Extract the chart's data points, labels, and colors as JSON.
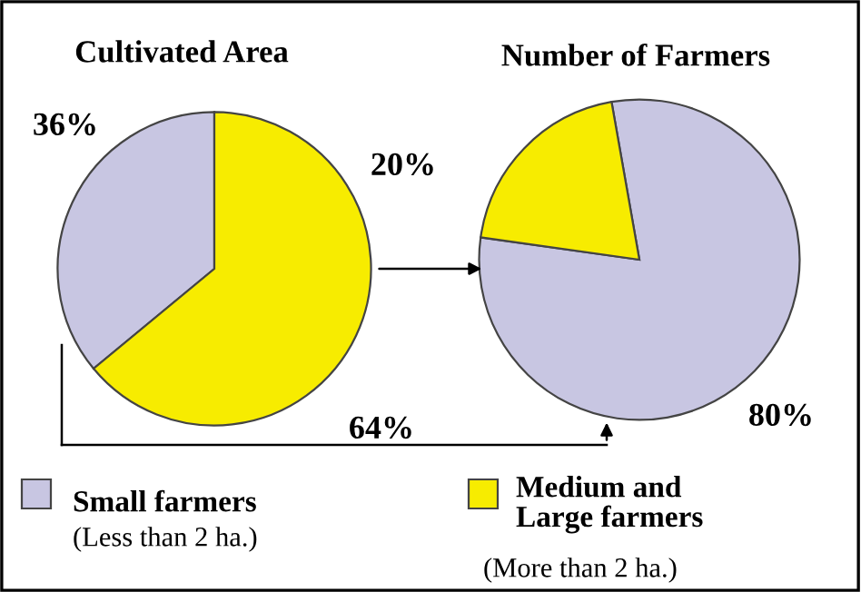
{
  "chart_data": [
    {
      "type": "pie",
      "title": "Cultivated Area",
      "categories": [
        "Small farmers",
        "Medium and Large farmers"
      ],
      "values": [
        36,
        64
      ],
      "colors": [
        "#c8c6e2",
        "#f7ec00"
      ],
      "value_labels": [
        "36%",
        "64%"
      ],
      "legend": "bottom",
      "annotations": [
        "(Less than 2 ha.)",
        "(More than 2 ha.)"
      ]
    },
    {
      "type": "pie",
      "title": "Number of Farmers",
      "values": [
        80,
        20
      ],
      "colors": [
        "#c8c6e2",
        "#f7ec00"
      ],
      "value_labels": [
        "80%",
        "20%"
      ]
    }
  ]
}
